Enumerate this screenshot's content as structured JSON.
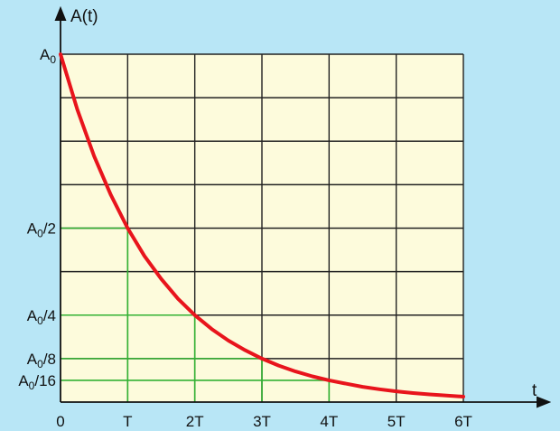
{
  "chart_data": {
    "type": "line",
    "title": "",
    "xlabel": "t",
    "ylabel": "A(t)",
    "x_ticks": [
      "0",
      "T",
      "2T",
      "3T",
      "4T",
      "5T",
      "6T"
    ],
    "y_ticks": [
      {
        "value": 1,
        "base": "A",
        "sub": "0",
        "suffix": ""
      },
      {
        "value": 0.5,
        "base": "A",
        "sub": "0",
        "suffix": "/2"
      },
      {
        "value": 0.25,
        "base": "A",
        "sub": "0",
        "suffix": "/4"
      },
      {
        "value": 0.125,
        "base": "A",
        "sub": "0",
        "suffix": "/8"
      },
      {
        "value": 0.0625,
        "base": "A",
        "sub": "0",
        "suffix": "/16"
      }
    ],
    "xlim": [
      0,
      6
    ],
    "ylim": [
      0,
      1
    ],
    "grid": true,
    "series": [
      {
        "color": "#e8141c",
        "x": [
          0,
          0.25,
          0.5,
          0.75,
          1,
          1.25,
          1.5,
          1.75,
          2,
          2.25,
          2.5,
          2.75,
          3,
          3.25,
          3.5,
          3.75,
          4,
          4.25,
          4.5,
          4.75,
          5,
          5.25,
          5.5,
          5.75,
          6
        ],
        "y": [
          1,
          0.841,
          0.707,
          0.595,
          0.5,
          0.42,
          0.354,
          0.297,
          0.25,
          0.21,
          0.177,
          0.149,
          0.125,
          0.105,
          0.088,
          0.074,
          0.0625,
          0.053,
          0.044,
          0.037,
          0.031,
          0.026,
          0.022,
          0.019,
          0.0156
        ]
      }
    ],
    "guides": [
      {
        "x": 1,
        "y": 0.5
      },
      {
        "x": 2,
        "y": 0.25
      },
      {
        "x": 3,
        "y": 0.125
      },
      {
        "x": 4,
        "y": 0.0625
      }
    ],
    "colors": {
      "background": "#b8e6f6",
      "plot_area": "#fdfbdc",
      "grid": "#222222",
      "guide": "#33b233",
      "axis": "#111111"
    }
  }
}
